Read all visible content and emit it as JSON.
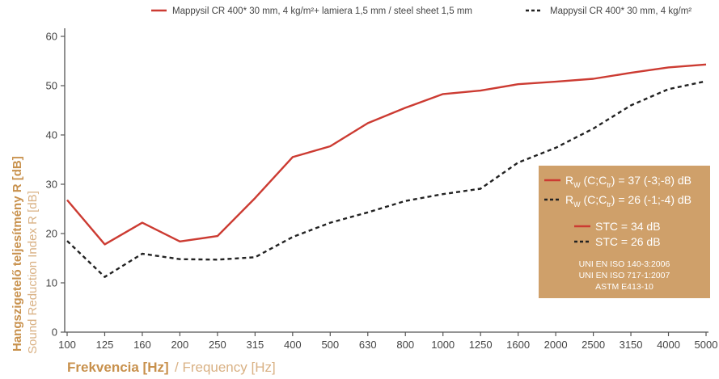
{
  "chart_data": {
    "type": "line",
    "categories": [
      "100",
      "125",
      "160",
      "200",
      "250",
      "315",
      "400",
      "500",
      "630",
      "800",
      "1000",
      "1250",
      "1600",
      "2000",
      "2500",
      "3150",
      "4000",
      "5000"
    ],
    "series": [
      {
        "name": "Mappysil CR 400* 30 mm, 4 kg/m²+ lamiera 1,5 mm / steel sheet 1,5 mm",
        "color": "#cc3b32",
        "style": "solid",
        "values": [
          26.8,
          17.8,
          22.2,
          18.4,
          19.5,
          27.2,
          35.5,
          37.7,
          42.4,
          45.5,
          48.3,
          49.0,
          50.3,
          50.8,
          51.4,
          52.6,
          53.7,
          54.3
        ]
      },
      {
        "name": "Mappysil CR 400* 30 mm, 4 kg/m²",
        "color": "#222222",
        "style": "dashed",
        "values": [
          18.5,
          11.2,
          15.9,
          14.8,
          14.7,
          15.2,
          19.3,
          22.2,
          24.3,
          26.6,
          28.0,
          29.1,
          34.4,
          37.4,
          41.3,
          46.0,
          49.3,
          50.9
        ]
      }
    ],
    "ylim": [
      0,
      60
    ],
    "yticks": [
      0,
      10,
      20,
      30,
      40,
      50,
      60
    ],
    "grid": false,
    "legend_position": "top-right",
    "ylabel_primary": "Hangszigetelő teljesítmény R [dB]",
    "ylabel_secondary": "Sound Reduction Index R [dB]",
    "xlabel_primary": "Frekvencia [Hz]",
    "xlabel_secondary": "/ Frequency [Hz]",
    "info_box": {
      "rw_red": {
        "main": "R",
        "sub_w": "W",
        "mid": " (C;C",
        "sub_tr": "tr",
        "rest": ") = 37 (-3;-8) dB"
      },
      "rw_black": {
        "main": "R",
        "sub_w": "W",
        "mid": " (C;C",
        "sub_tr": "tr",
        "rest": ") = 26 (-1;-4) dB"
      },
      "stc_red": "STC = 34 dB",
      "stc_black": "STC = 26 dB",
      "standards": [
        "UNI EN ISO 140-3:2006",
        "UNI EN ISO 717-1:2007",
        "ASTM E413-10"
      ]
    }
  },
  "colors": {
    "axis": "#555555",
    "red": "#cc3b32",
    "black": "#222222",
    "box": "#cfa06a",
    "label_primary": "#c8914d",
    "label_secondary": "#d9b184"
  }
}
